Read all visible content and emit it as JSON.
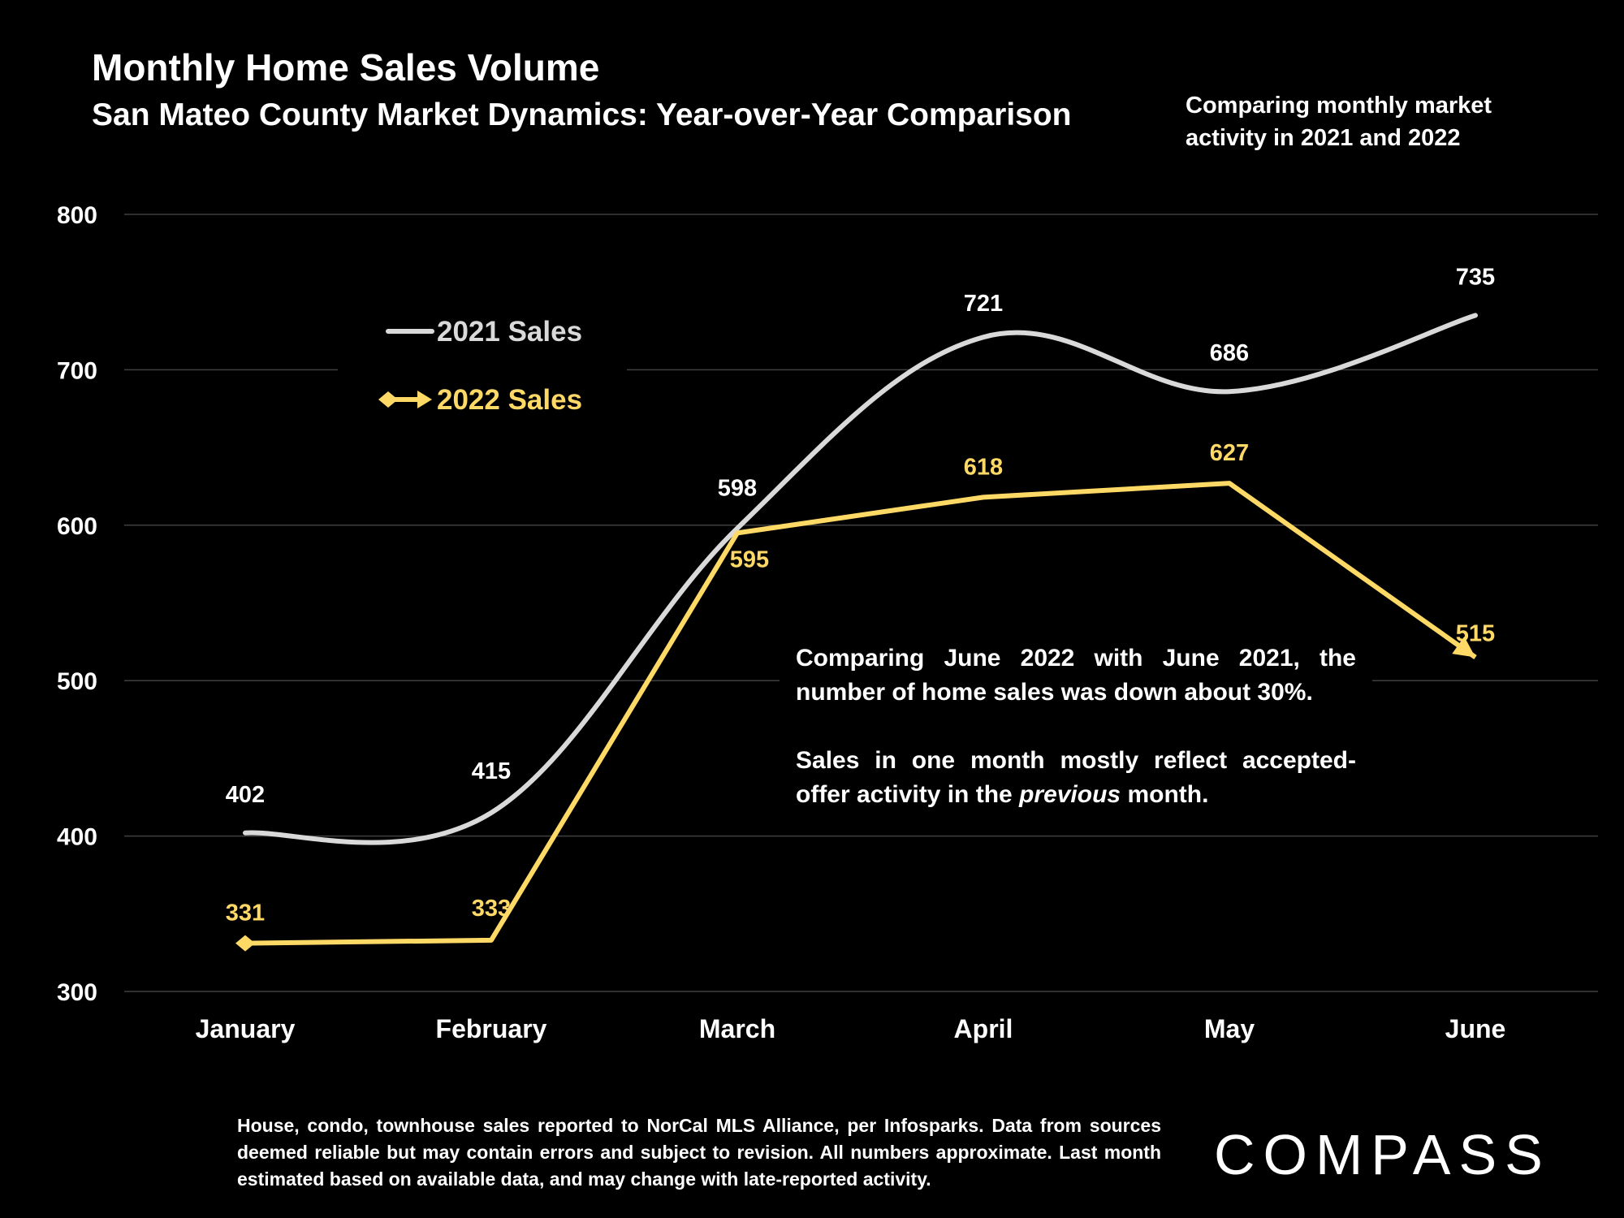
{
  "header": {
    "title": "Monthly Home Sales Volume",
    "subtitle": "San Mateo County Market Dynamics: Year-over-Year Comparison",
    "side_note": "Comparing monthly market activity in 2021 and 2022"
  },
  "annotation": {
    "p1": "Comparing June 2022 with June 2021, the number of home sales was down about 30%.",
    "p2_before": "Sales in one month mostly reflect accepted-offer activity in the",
    "p2_italic": "previous",
    "p2_after": "month."
  },
  "footnote": "House, condo, townhouse sales reported to NorCal MLS Alliance, per Infosparks. Data from sources deemed reliable but may contain errors and subject to revision. All numbers approximate. Last month estimated based on available data, and may change with late-reported activity.",
  "logo": {
    "text": "COMPASS"
  },
  "colors": {
    "series2021": "#d9d9d9",
    "series2022": "#ffd966",
    "grid": "#404040",
    "background": "#000000"
  },
  "chart_data": {
    "type": "line",
    "categories": [
      "January",
      "February",
      "March",
      "April",
      "May",
      "June"
    ],
    "ylim": [
      300,
      800
    ],
    "yticks": [
      300,
      400,
      500,
      600,
      700,
      800
    ],
    "grid": true,
    "legend_position": "top-left",
    "series": [
      {
        "name": "2021 Sales",
        "values": [
          402,
          415,
          598,
          721,
          686,
          735
        ],
        "color": "#d9d9d9",
        "smooth": true
      },
      {
        "name": "2022 Sales",
        "values": [
          331,
          333,
          595,
          618,
          627,
          515
        ],
        "color": "#ffd966",
        "smooth": false
      }
    ]
  }
}
